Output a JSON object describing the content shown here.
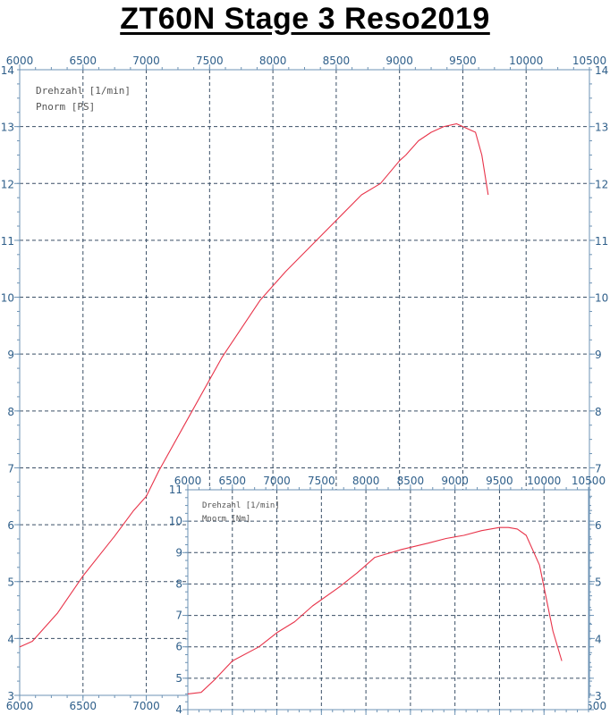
{
  "title": "ZT60N  Stage 3  Reso2019",
  "colors": {
    "curve": "#e8344a",
    "grid": "#3a4f66",
    "axis": "#6d93b5",
    "tick_text": "#2f5f8a"
  },
  "chart_data": [
    {
      "type": "line",
      "labels": [
        "Drehzahl [1/min]",
        "Pnorm [PS]"
      ],
      "xlim": [
        6000,
        10500
      ],
      "ylim": [
        3,
        14
      ],
      "xticks": [
        "6000",
        "6500",
        "7000",
        "7500",
        "8000",
        "8500",
        "9000",
        "9500",
        "10000",
        "10500"
      ],
      "yticks": [
        "3",
        "4",
        "5",
        "6",
        "7",
        "8",
        "9",
        "10",
        "11",
        "12",
        "13",
        "14"
      ],
      "series": [
        {
          "x": [
            6000,
            6100,
            6300,
            6500,
            6750,
            6900,
            7000,
            7100,
            7300,
            7600,
            7900,
            8100,
            8300,
            8500,
            8700,
            8850,
            9000,
            9050,
            9150,
            9250,
            9350,
            9450,
            9500,
            9600,
            9650,
            9700
          ],
          "y": [
            3.85,
            3.95,
            4.45,
            5.1,
            5.8,
            6.25,
            6.5,
            6.95,
            7.75,
            8.95,
            9.95,
            10.45,
            10.9,
            11.35,
            11.8,
            12.0,
            12.4,
            12.5,
            12.75,
            12.9,
            13.0,
            13.05,
            13.0,
            12.9,
            12.5,
            11.8
          ]
        }
      ]
    },
    {
      "type": "line",
      "labels": [
        "Drehzahl [1/min]",
        "Mnorm [Nm]"
      ],
      "xlim": [
        6000,
        10500
      ],
      "ylim": [
        4,
        11
      ],
      "xticks": [
        "6000",
        "6500",
        "7000",
        "7500",
        "8000",
        "8500",
        "9000",
        "9500",
        "10000",
        "10500"
      ],
      "yticks": [
        "4",
        "5",
        "6",
        "7",
        "8",
        "9",
        "10",
        "11"
      ],
      "series": [
        {
          "x": [
            6000,
            6150,
            6300,
            6500,
            6800,
            7000,
            7200,
            7400,
            7700,
            7900,
            8100,
            8400,
            8700,
            8900,
            9100,
            9300,
            9400,
            9500,
            9600,
            9700,
            9800,
            9950,
            10100,
            10200
          ],
          "y": [
            4.5,
            4.55,
            4.95,
            5.55,
            6.0,
            6.45,
            6.8,
            7.3,
            7.9,
            8.35,
            8.85,
            9.1,
            9.3,
            9.45,
            9.55,
            9.7,
            9.75,
            9.8,
            9.8,
            9.75,
            9.55,
            8.6,
            6.5,
            5.55
          ]
        }
      ]
    }
  ]
}
